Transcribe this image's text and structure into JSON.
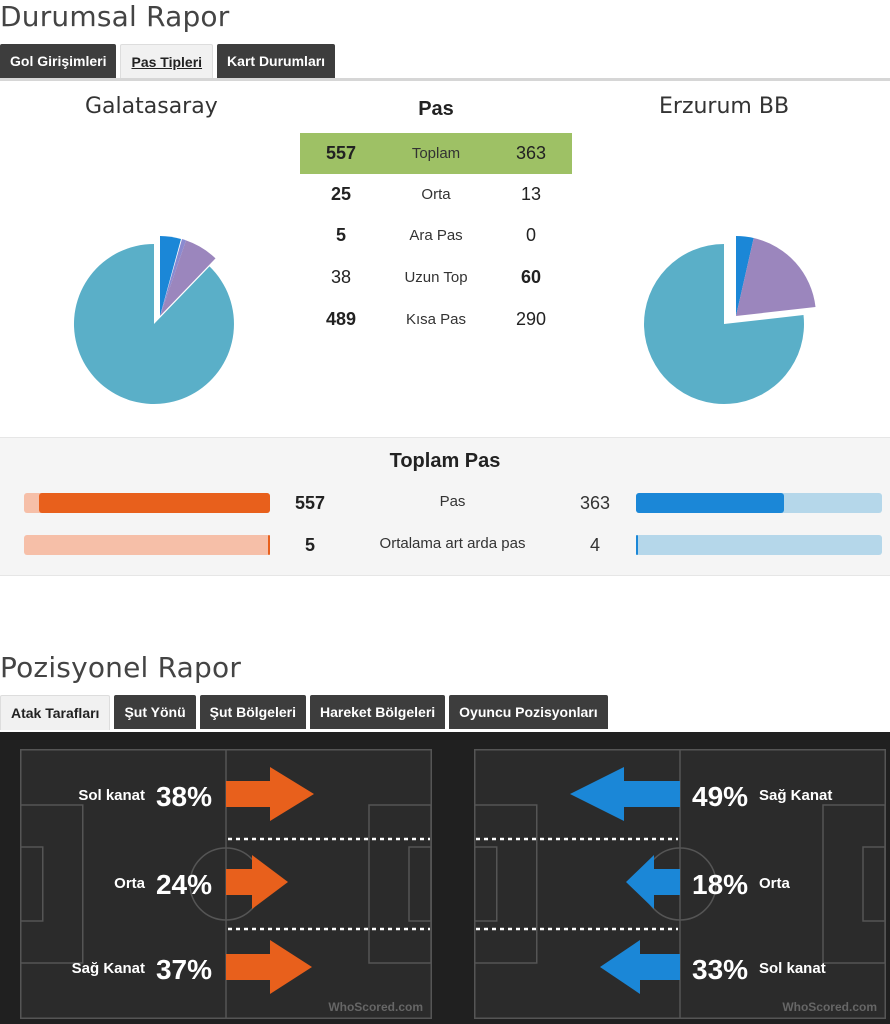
{
  "durumsal": {
    "title": "Durumsal Rapor",
    "tabs": [
      "Gol Girişimleri",
      "Pas Tipleri",
      "Kart Durumları"
    ]
  },
  "teams": {
    "home": "Galatasaray",
    "away": "Erzurum BB"
  },
  "pas": {
    "title": "Pas",
    "rows": [
      {
        "home": "557",
        "label": "Toplam",
        "away": "363"
      },
      {
        "home": "25",
        "label": "Orta",
        "away": "13"
      },
      {
        "home": "5",
        "label": "Ara Pas",
        "away": "0"
      },
      {
        "home": "38",
        "label": "Uzun Top",
        "away": "60"
      },
      {
        "home": "489",
        "label": "Kısa Pas",
        "away": "290"
      }
    ]
  },
  "pie_colors": {
    "kisa": "#5aafc8",
    "orta": "#1b87d7",
    "uzun": "#9b86bd",
    "ara": "#8a8ad0"
  },
  "toplam_pas": {
    "title": "Toplam Pas",
    "rows": [
      {
        "home": "557",
        "label": "Pas",
        "away": "363",
        "home_fill": 0.94,
        "away_fill": 0.6
      },
      {
        "home": "5",
        "label": "Ortalama art arda pas",
        "away": "4",
        "home_fill": 0.01,
        "away_fill": 0.01
      }
    ]
  },
  "pozisyonel": {
    "title": "Pozisyonel Rapor",
    "tabs": [
      "Atak Tarafları",
      "Şut Yönü",
      "Şut Bölgeleri",
      "Hareket Bölgeleri",
      "Oyuncu Pozisyonları"
    ]
  },
  "attack": {
    "home": [
      {
        "label": "Sol kanat",
        "pct": "38%"
      },
      {
        "label": "Orta",
        "pct": "24%"
      },
      {
        "label": "Sağ Kanat",
        "pct": "37%"
      }
    ],
    "away": [
      {
        "label": "Sağ Kanat",
        "pct": "49%"
      },
      {
        "label": "Orta",
        "pct": "18%"
      },
      {
        "label": "Sol kanat",
        "pct": "33%"
      }
    ],
    "watermark": "WhoScored.com",
    "home_color": "#e8601c",
    "away_color": "#1b87d7"
  }
}
